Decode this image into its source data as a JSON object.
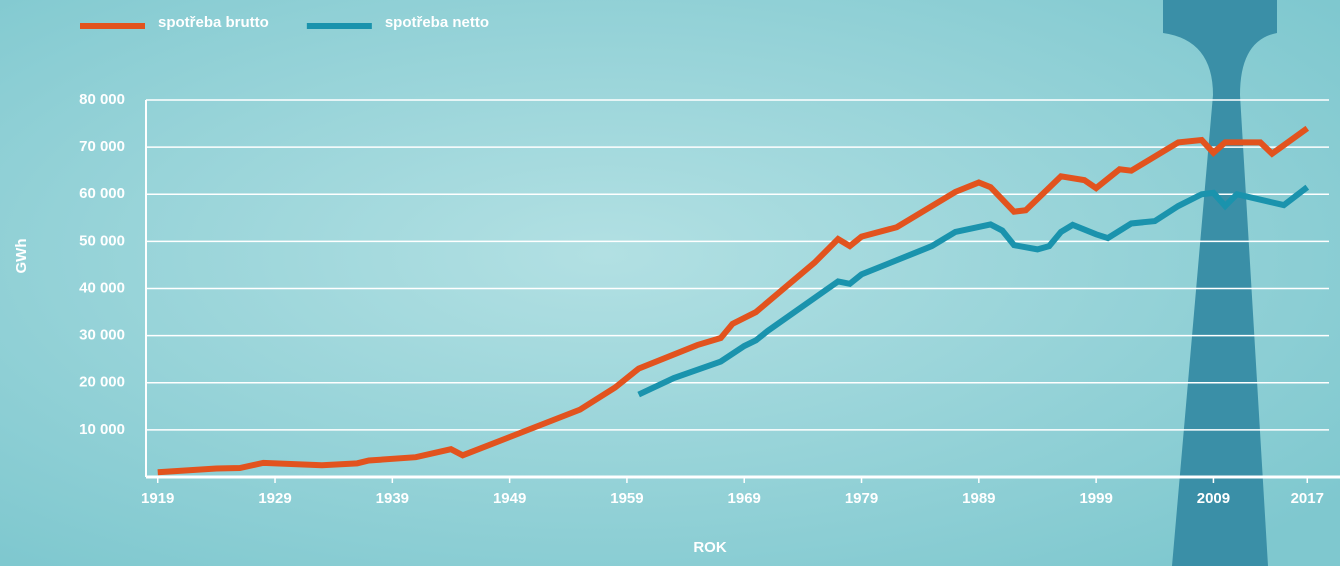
{
  "chart_data": {
    "type": "line",
    "x_label": "ROK",
    "y_label": "GWh",
    "xlim": [
      1918,
      2018
    ],
    "xticks": [
      1919,
      1929,
      1939,
      1949,
      1959,
      1969,
      1979,
      1989,
      1999,
      2009,
      2017
    ],
    "ylim": [
      0,
      80000
    ],
    "yticks": [
      {
        "value": 10000,
        "label": "10 000"
      },
      {
        "value": 20000,
        "label": "20 000"
      },
      {
        "value": 30000,
        "label": "30 000"
      },
      {
        "value": 40000,
        "label": "40 000"
      },
      {
        "value": 50000,
        "label": "50 000"
      },
      {
        "value": 60000,
        "label": "60 000"
      },
      {
        "value": 70000,
        "label": "70 000"
      },
      {
        "value": 80000,
        "label": "80 000"
      }
    ],
    "grid": true,
    "legend": "top-left",
    "series": [
      {
        "name": "spotřeba brutto",
        "color": "#e2531e",
        "x": [
          1919,
          1924,
          1926,
          1928,
          1933,
          1936,
          1937,
          1941,
          1944,
          1945,
          1955,
          1958,
          1960,
          1965,
          1967,
          1968,
          1970,
          1975,
          1977,
          1978,
          1979,
          1982,
          1987,
          1989,
          1990,
          1992,
          1993,
          1996,
          1998,
          1999,
          2001,
          2002,
          2006,
          2008,
          2009,
          2010,
          2013,
          2014,
          2017
        ],
        "values": [
          1000,
          1800,
          1900,
          3000,
          2500,
          2900,
          3500,
          4200,
          5900,
          4600,
          14300,
          19000,
          23000,
          28000,
          29500,
          32500,
          35000,
          45500,
          50500,
          49000,
          51000,
          53000,
          60500,
          62500,
          61500,
          56300,
          56600,
          63800,
          63000,
          61300,
          65300,
          65000,
          71000,
          71500,
          68800,
          71000,
          71000,
          68600,
          74000
        ]
      },
      {
        "name": "spotřeba netto",
        "color": "#1a93ad",
        "x": [
          1960,
          1963,
          1967,
          1969,
          1970,
          1971,
          1977,
          1978,
          1979,
          1985,
          1987,
          1990,
          1991,
          1992,
          1994,
          1995,
          1996,
          1997,
          1999,
          2000,
          2002,
          2004,
          2006,
          2008,
          2009,
          2010,
          2011,
          2015,
          2017
        ],
        "values": [
          17500,
          21000,
          24500,
          27800,
          29000,
          31000,
          41500,
          41000,
          43000,
          49000,
          52000,
          53600,
          52300,
          49200,
          48300,
          49000,
          52000,
          53500,
          51500,
          50700,
          53800,
          54300,
          57500,
          60000,
          60300,
          57500,
          60000,
          57700,
          61500
        ]
      }
    ]
  }
}
